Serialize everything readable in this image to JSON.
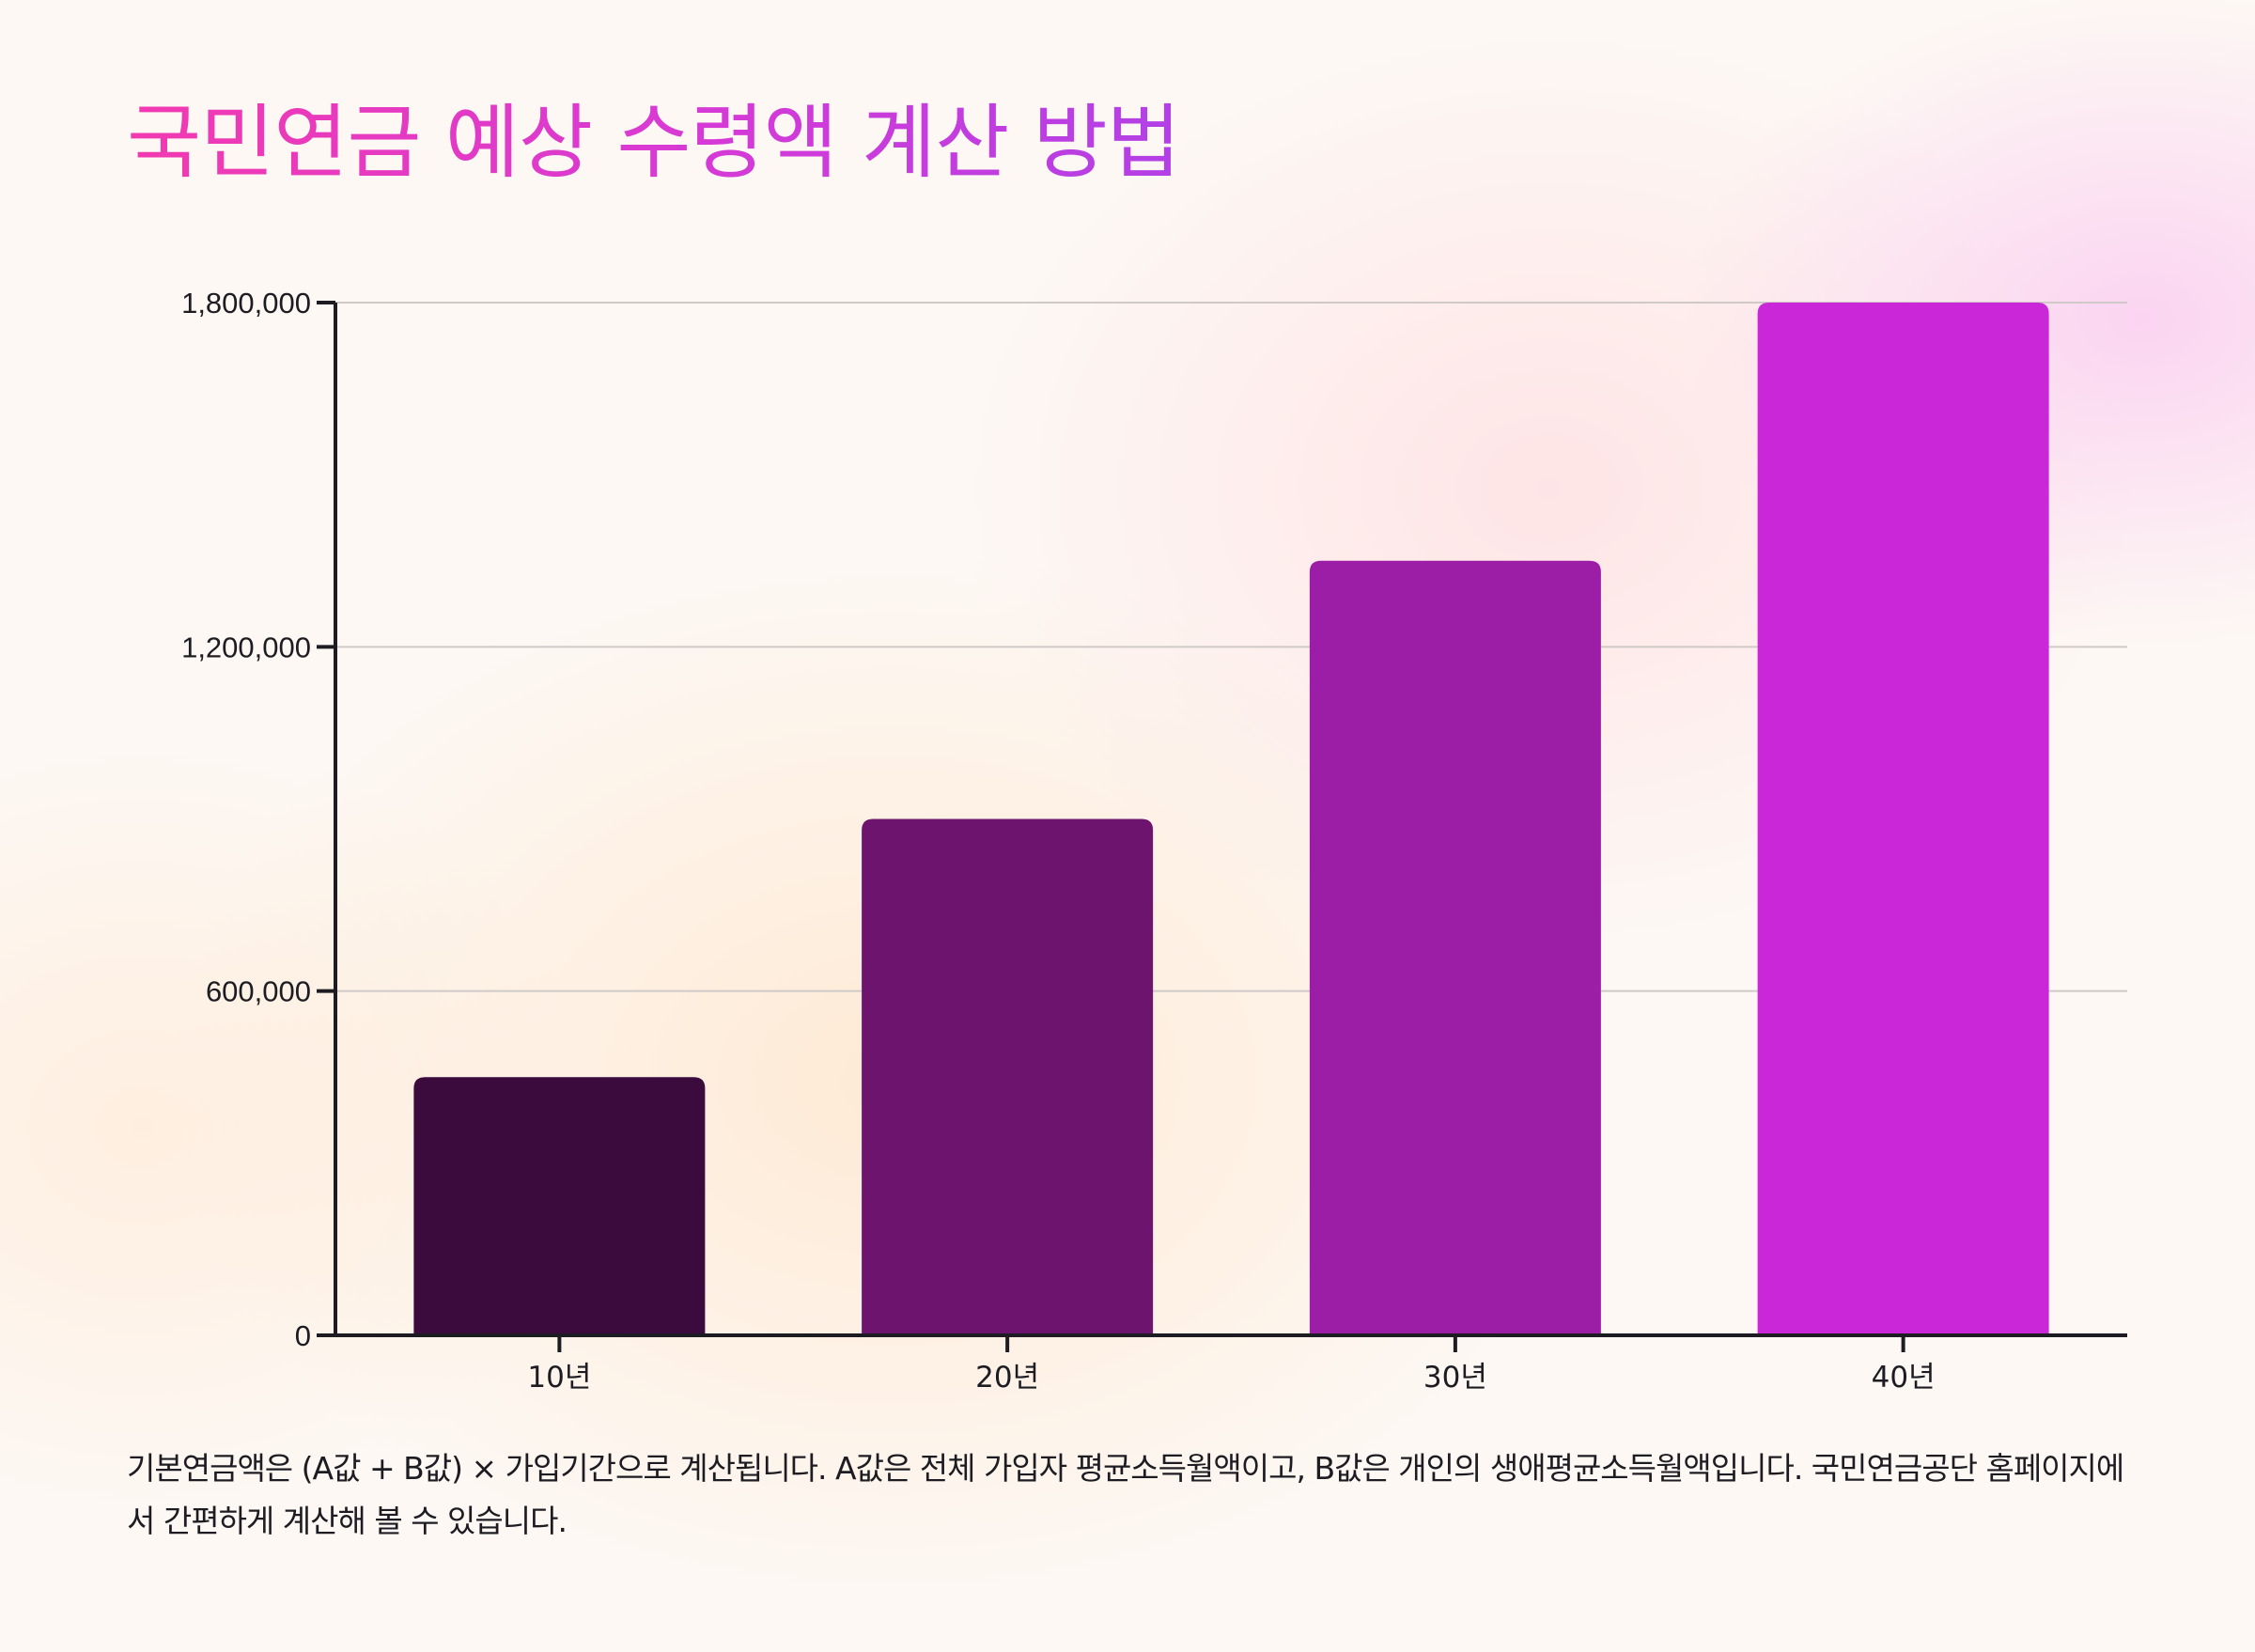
{
  "chart_data": {
    "type": "bar",
    "title": "국민연금 예상 수령액 계산 방법",
    "categories": [
      "10년",
      "20년",
      "30년",
      "40년"
    ],
    "values": [
      450000,
      900000,
      1350000,
      1800000
    ],
    "ylim": [
      0,
      1800000
    ],
    "yticks": [
      0,
      600000,
      1200000,
      1800000
    ],
    "ytick_labels": [
      "0",
      "600,000",
      "1,200,000",
      "1,800,000"
    ],
    "xlabel": "",
    "ylabel": "",
    "grid": true,
    "colors": [
      "#3c0b3e",
      "#6c146e",
      "#9c1ea6",
      "#c927d8"
    ]
  },
  "caption": "기본연금액은 (A값 + B값) × 가입기간으로 계산됩니다. A값은 전체 가입자 평균소득월액이고, B값은 개인의 생애평균소득월액입니다. 국민연금공단 홈페이지에서 간편하게 계산해 볼 수 있습니다."
}
